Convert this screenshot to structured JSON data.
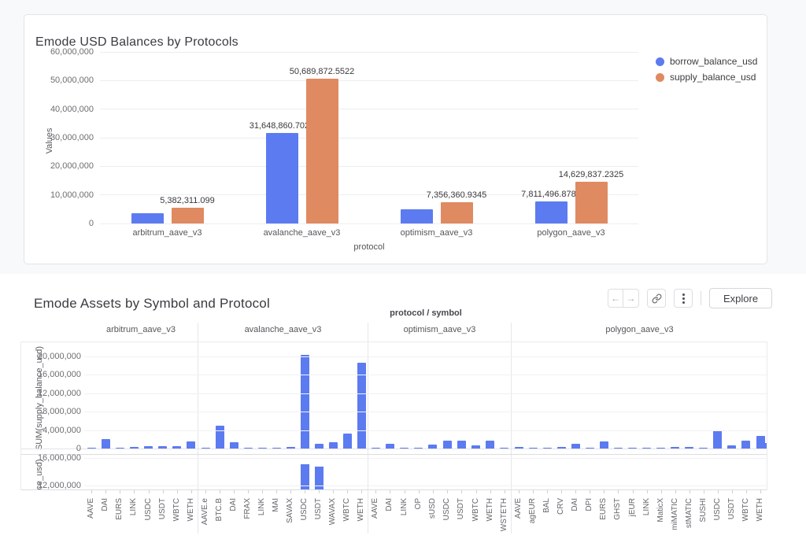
{
  "colors": {
    "bar_blue": "#5c7bf0",
    "bar_orange": "#e08a61"
  },
  "chart1": {
    "title": "Emode USD Balances by Protocols",
    "ylabel": "Values",
    "xlabel": "protocol"
  },
  "chart2": {
    "title": "Emode Assets by Symbol and Protocol",
    "facet_axis_title": "protocol / symbol",
    "row1_axis_label": "SUM(supply_balance_usd)",
    "row2_axis_label_truncated": "ce_usd)"
  },
  "toolbar": {
    "prev_icon": "←",
    "next_icon": "→",
    "icons": [
      "arrow-left-icon",
      "arrow-right-icon",
      "link-icon",
      "kebab-icon"
    ],
    "explore_label": "Explore"
  },
  "chart_data": [
    {
      "type": "bar",
      "title": "Emode USD Balances by Protocols",
      "xlabel": "protocol",
      "ylabel": "Values",
      "ylim": [
        0,
        60000000
      ],
      "grid": true,
      "legend_position": "right",
      "yticks": [
        "0",
        "10,000,000",
        "20,000,000",
        "30,000,000",
        "40,000,000",
        "50,000,000",
        "60,000,000"
      ],
      "categories": [
        "arbitrum_aave_v3",
        "avalanche_aave_v3",
        "optimism_aave_v3",
        "polygon_aave_v3"
      ],
      "series": [
        {
          "name": "borrow_balance_usd",
          "color": "#5c7bf0",
          "values": [
            3650000,
            31648860.7028,
            4960000,
            7811496.8782
          ],
          "data_labels": [
            null,
            "31,648,860.7028",
            null,
            "7,811,496.8782"
          ]
        },
        {
          "name": "supply_balance_usd",
          "color": "#e08a61",
          "values": [
            5382311.099,
            50689872.5522,
            7356360.9345,
            14629837.2325
          ],
          "data_labels": [
            "5,382,311.099",
            "50,689,872.5522",
            "7,356,360.9345",
            "14,629,837.2325"
          ]
        }
      ]
    },
    {
      "type": "bar",
      "title": "Emode Assets by Symbol and Protocol",
      "facet_axis_title": "protocol / symbol",
      "bar_color": "#5c7bf0",
      "rows": [
        {
          "axis_label": "SUM(supply_balance_usd)",
          "ticks": [
            "20,000,000",
            "16,000,000",
            "12,000,000",
            "8,000,000",
            "4,000,000",
            "0"
          ]
        },
        {
          "axis_label_truncated": "ce_usd)",
          "ticks": [
            "16,000,000",
            "12,000,000"
          ]
        }
      ],
      "facets": [
        {
          "protocol": "arbitrum_aave_v3",
          "symbols": [
            "AAVE",
            "DAI",
            "EURS",
            "LINK",
            "USDC",
            "USDT",
            "WBTC",
            "WETH"
          ],
          "supply_balance_usd": [
            60000,
            2000000,
            70000,
            350000,
            600000,
            450000,
            500000,
            1550000
          ],
          "borrow_balance_usd_visible": [
            0,
            0,
            0,
            0,
            0,
            0,
            0,
            0
          ]
        },
        {
          "protocol": "avalanche_aave_v3",
          "symbols": [
            "AAVE.e",
            "BTC.B",
            "DAI",
            "FRAX",
            "LINK",
            "MAI",
            "SAVAX",
            "USDC",
            "USDT",
            "WAVAX",
            "WBTC",
            "WETH"
          ],
          "supply_balance_usd": [
            80000,
            4900000,
            1450000,
            60000,
            120000,
            220000,
            350000,
            20300000,
            1100000,
            1350000,
            3200000,
            18600000
          ],
          "borrow_balance_usd_visible": [
            0,
            0,
            0,
            0,
            0,
            0,
            0,
            15100000,
            14700000,
            0,
            0,
            0
          ]
        },
        {
          "protocol": "optimism_aave_v3",
          "symbols": [
            "AAVE",
            "DAI",
            "LINK",
            "OP",
            "sUSD",
            "USDC",
            "USDT",
            "WBTC",
            "WETH",
            "WSTETH"
          ],
          "supply_balance_usd": [
            70000,
            950000,
            100000,
            160000,
            780000,
            1650000,
            1650000,
            720000,
            1700000,
            150000
          ],
          "borrow_balance_usd_visible": [
            0,
            0,
            0,
            0,
            0,
            0,
            0,
            0,
            0,
            0
          ]
        },
        {
          "protocol": "polygon_aave_v3",
          "symbols": [
            "AAVE",
            "agEUR",
            "BAL",
            "CRV",
            "DAI",
            "DPI",
            "EURS",
            "GHST",
            "jEUR",
            "LINK",
            "MaticX",
            "miMATIC",
            "stMATIC",
            "SUSHI",
            "USDC",
            "USDT",
            "WBTC",
            "WETH"
          ],
          "supply_balance_usd": [
            300000,
            40000,
            140000,
            420000,
            1050000,
            40000,
            1550000,
            120000,
            50000,
            220000,
            60000,
            380000,
            280000,
            80000,
            3900000,
            650000,
            1700000,
            2750000
          ],
          "borrow_balance_usd_visible": [
            0,
            0,
            0,
            0,
            0,
            0,
            0,
            0,
            0,
            0,
            0,
            0,
            0,
            0,
            0,
            0,
            0,
            0
          ],
          "clipped_partial_bar_value": 1200000
        }
      ]
    }
  ]
}
